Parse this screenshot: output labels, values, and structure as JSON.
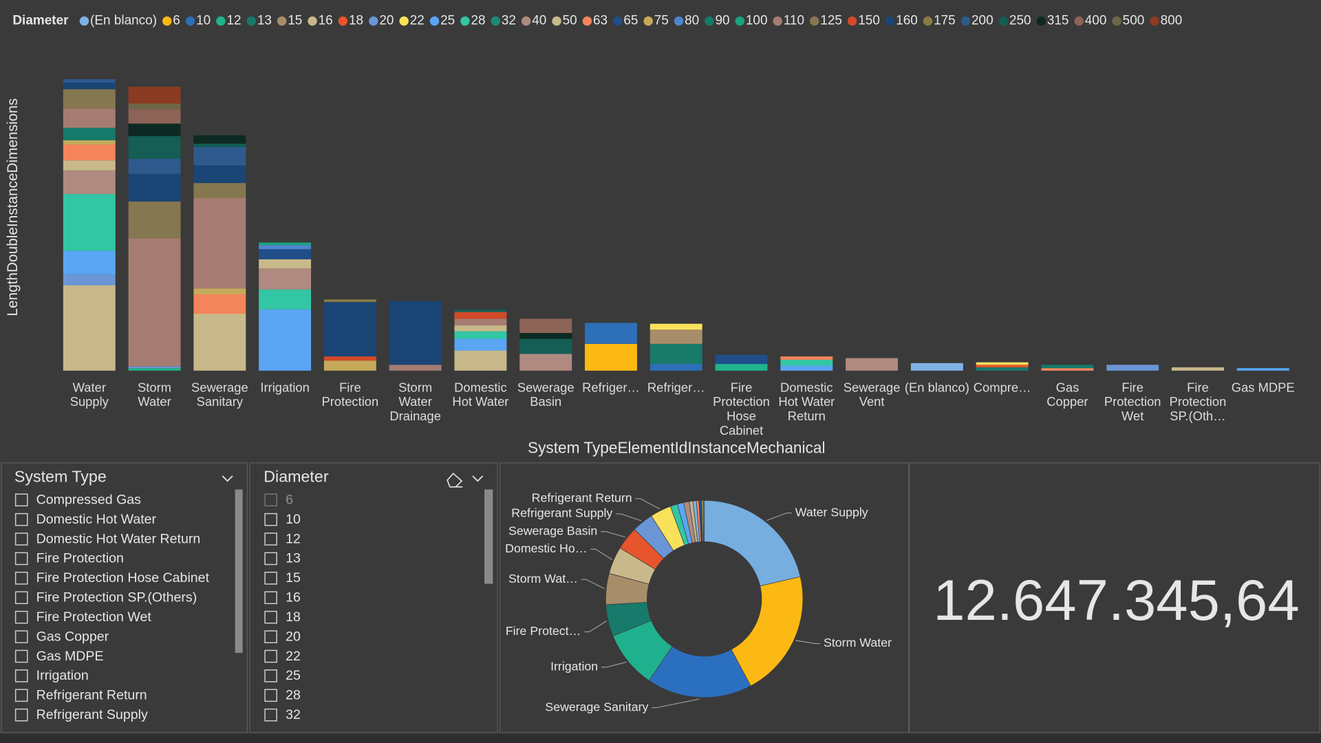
{
  "chart_data": [
    {
      "type": "stacked_bar",
      "legend_title": "Diameter",
      "y_label": "LengthDoubleInstanceDimensions",
      "x_label": "System TypeElementIdInstanceMechanical",
      "ylim": [
        0,
        350
      ],
      "grid": false,
      "legend_position": "top",
      "categories": [
        "Water Supply",
        "Storm Water",
        "Sewerage Sanitary",
        "Irrigation",
        "Fire Protection",
        "Storm Water Drainage",
        "Domestic Hot Water",
        "Sewerage Basin",
        "Refriger…",
        "Refriger…",
        "Fire Protection Hose Cabinet",
        "Domestic Hot Water Return",
        "Sewerage Vent",
        "(En blanco)",
        "Compre…",
        "Gas Copper",
        "Fire Protection Wet",
        "Fire Protection SP.(Oth…",
        "Gas MDPE"
      ],
      "series": [
        {
          "name": "(En blanco)",
          "color": "#7fb2e5",
          "values": [
            null,
            null,
            null,
            null,
            null,
            null,
            null,
            null,
            null,
            null,
            null,
            null,
            null,
            9,
            null,
            null,
            null,
            null,
            null
          ]
        },
        {
          "name": "6",
          "color": "#fdb913",
          "values": [
            null,
            null,
            null,
            null,
            null,
            null,
            null,
            null,
            32,
            null,
            null,
            null,
            null,
            null,
            null,
            null,
            null,
            null,
            null
          ]
        },
        {
          "name": "10",
          "color": "#2d6fb8",
          "values": [
            null,
            null,
            null,
            null,
            null,
            null,
            null,
            null,
            25,
            8,
            null,
            null,
            null,
            null,
            null,
            null,
            null,
            null,
            null
          ]
        },
        {
          "name": "12",
          "color": "#21b38d",
          "values": [
            null,
            3,
            null,
            null,
            null,
            null,
            null,
            null,
            null,
            null,
            8,
            null,
            null,
            null,
            null,
            null,
            null,
            null,
            null
          ]
        },
        {
          "name": "13",
          "color": "#197a6a",
          "values": [
            null,
            null,
            null,
            null,
            null,
            null,
            null,
            null,
            null,
            24,
            null,
            null,
            null,
            null,
            4,
            null,
            null,
            null,
            null
          ]
        },
        {
          "name": "15",
          "color": "#a88d6a",
          "values": [
            null,
            null,
            null,
            null,
            null,
            null,
            null,
            null,
            null,
            17,
            null,
            null,
            null,
            null,
            null,
            null,
            null,
            null,
            null
          ]
        },
        {
          "name": "16",
          "color": "#c8b88a",
          "values": [
            102,
            null,
            null,
            null,
            null,
            null,
            24,
            null,
            null,
            null,
            null,
            null,
            null,
            null,
            null,
            null,
            null,
            null,
            null
          ]
        },
        {
          "name": "18",
          "color": "#e8542b",
          "values": [
            null,
            null,
            null,
            null,
            null,
            null,
            null,
            null,
            null,
            null,
            null,
            null,
            null,
            null,
            3,
            null,
            null,
            null,
            null
          ]
        },
        {
          "name": "20",
          "color": "#6a96d6",
          "values": [
            13,
            2,
            null,
            null,
            null,
            null,
            null,
            null,
            null,
            null,
            null,
            null,
            null,
            null,
            null,
            null,
            7,
            null,
            null
          ]
        },
        {
          "name": "22",
          "color": "#f9e15a",
          "values": [
            null,
            null,
            null,
            null,
            null,
            null,
            null,
            null,
            null,
            7,
            null,
            null,
            null,
            null,
            3,
            null,
            null,
            null,
            null
          ]
        },
        {
          "name": "25",
          "color": "#5aa6f5",
          "values": [
            28,
            null,
            null,
            73,
            null,
            null,
            14,
            null,
            null,
            null,
            null,
            6,
            null,
            null,
            null,
            null,
            null,
            null,
            3
          ]
        },
        {
          "name": "28",
          "color": "#33c6a4",
          "values": [
            68,
            null,
            null,
            24,
            null,
            null,
            9,
            null,
            null,
            null,
            null,
            7,
            null,
            null,
            null,
            null,
            null,
            null,
            null
          ]
        },
        {
          "name": "32",
          "color": "#1a8a7a",
          "values": [
            null,
            null,
            null,
            null,
            null,
            null,
            null,
            null,
            null,
            null,
            null,
            null,
            null,
            null,
            null,
            null,
            null,
            null,
            null
          ]
        },
        {
          "name": "40",
          "color": "#b08a80",
          "values": [
            28,
            null,
            null,
            25,
            null,
            null,
            null,
            20,
            null,
            null,
            null,
            null,
            15,
            null,
            null,
            null,
            null,
            null,
            null
          ]
        },
        {
          "name": "50",
          "color": "#c8b98a",
          "values": [
            12,
            null,
            68,
            11,
            null,
            null,
            7,
            null,
            null,
            null,
            null,
            null,
            null,
            null,
            null,
            null,
            null,
            4,
            null
          ]
        },
        {
          "name": "63",
          "color": "#f4845b",
          "values": [
            19,
            null,
            23,
            null,
            null,
            null,
            null,
            null,
            null,
            null,
            null,
            4,
            null,
            null,
            null,
            3,
            null,
            null,
            null
          ]
        },
        {
          "name": "65",
          "color": "#1f4e89",
          "values": [
            null,
            null,
            null,
            12,
            null,
            null,
            null,
            null,
            null,
            null,
            11,
            null,
            null,
            null,
            null,
            null,
            null,
            null,
            null
          ]
        },
        {
          "name": "75",
          "color": "#c5aa5a",
          "values": [
            5,
            null,
            7,
            null,
            12,
            null,
            null,
            null,
            null,
            null,
            null,
            null,
            null,
            null,
            null,
            null,
            null,
            null,
            null
          ]
        },
        {
          "name": "80",
          "color": "#4c86cc",
          "values": [
            null,
            null,
            null,
            5,
            null,
            null,
            null,
            null,
            null,
            null,
            null,
            null,
            null,
            null,
            null,
            null,
            null,
            null,
            null
          ]
        },
        {
          "name": "90",
          "color": "#167a6a",
          "values": [
            15,
            null,
            null,
            null,
            null,
            null,
            null,
            null,
            null,
            null,
            null,
            null,
            null,
            null,
            null,
            4,
            null,
            null,
            null
          ]
        },
        {
          "name": "100",
          "color": "#1ba27f",
          "values": [
            null,
            null,
            null,
            3,
            null,
            null,
            null,
            null,
            null,
            null,
            null,
            null,
            null,
            null,
            null,
            null,
            null,
            null,
            null
          ]
        },
        {
          "name": "110",
          "color": "#a67c72",
          "values": [
            23,
            153,
            108,
            null,
            null,
            7,
            8,
            null,
            null,
            null,
            null,
            null,
            null,
            null,
            null,
            null,
            null,
            null,
            null
          ]
        },
        {
          "name": "125",
          "color": "#85774f",
          "values": [
            23,
            44,
            18,
            null,
            null,
            null,
            null,
            null,
            null,
            null,
            null,
            null,
            null,
            null,
            null,
            null,
            null,
            null,
            null
          ]
        },
        {
          "name": "150",
          "color": "#d24a2a",
          "values": [
            null,
            null,
            null,
            null,
            5,
            null,
            8,
            null,
            null,
            null,
            null,
            null,
            null,
            null,
            null,
            null,
            null,
            null,
            null
          ]
        },
        {
          "name": "160",
          "color": "#1a4575",
          "values": [
            8,
            33,
            21,
            null,
            65,
            76,
            null,
            null,
            null,
            null,
            null,
            null,
            null,
            null,
            null,
            null,
            null,
            null,
            null
          ]
        },
        {
          "name": "175",
          "color": "#8a7b44",
          "values": [
            null,
            null,
            null,
            null,
            3,
            null,
            null,
            null,
            null,
            null,
            null,
            null,
            null,
            null,
            null,
            null,
            null,
            null,
            null
          ]
        },
        {
          "name": "200",
          "color": "#2e5a8e",
          "values": [
            4,
            18,
            22,
            null,
            null,
            null,
            null,
            null,
            null,
            null,
            null,
            null,
            null,
            null,
            null,
            null,
            null,
            null,
            null
          ]
        },
        {
          "name": "250",
          "color": "#145e55",
          "values": [
            null,
            27,
            4,
            null,
            null,
            null,
            3,
            18,
            null,
            null,
            null,
            null,
            null,
            null,
            null,
            null,
            null,
            null,
            null
          ]
        },
        {
          "name": "315",
          "color": "#0d2a22",
          "values": [
            null,
            15,
            10,
            null,
            null,
            null,
            null,
            7,
            null,
            null,
            null,
            null,
            null,
            null,
            null,
            null,
            null,
            null,
            null
          ]
        },
        {
          "name": "400",
          "color": "#8e6358",
          "values": [
            null,
            17,
            null,
            null,
            null,
            null,
            null,
            17,
            null,
            null,
            null,
            null,
            null,
            null,
            null,
            null,
            null,
            null,
            null
          ]
        },
        {
          "name": "500",
          "color": "#6f6648",
          "values": [
            null,
            7,
            null,
            null,
            null,
            null,
            null,
            null,
            null,
            null,
            null,
            null,
            null,
            null,
            null,
            null,
            null,
            null,
            null
          ]
        },
        {
          "name": "800",
          "color": "#8b3b22",
          "values": [
            null,
            20,
            null,
            null,
            null,
            null,
            null,
            null,
            null,
            null,
            null,
            null,
            null,
            null,
            null,
            null,
            null,
            null,
            null
          ]
        }
      ]
    },
    {
      "type": "donut",
      "labels": [
        "Water Supply",
        "Storm Water",
        "Sewerage Sanitary",
        "Irrigation",
        "Fire Protect…",
        "Storm Wat…",
        "Domestic Ho…",
        "Sewerage Basin",
        "Refrigerant Supply",
        "Refrigerant Return",
        null,
        null,
        null,
        null,
        null,
        null,
        null,
        null,
        null
      ],
      "values": [
        348,
        339,
        281,
        153,
        85,
        83,
        73,
        62,
        57,
        56,
        19,
        17,
        15,
        10,
        9,
        7,
        7,
        4,
        3
      ],
      "colors": [
        "#76aee0",
        "#fdb913",
        "#2b6fc0",
        "#1fb18e",
        "#177a6a",
        "#a88d6a",
        "#c9b98a",
        "#e8542b",
        "#6a96d6",
        "#f9e15a",
        "#33c6a4",
        "#5aa6f5",
        "#b08a80",
        "#c2b48a",
        "#7fb2e5",
        "#f4845b",
        "#1f4e89",
        "#c5aa5a",
        "#4c86cc"
      ]
    }
  ],
  "slicers": [
    {
      "title": "System Type",
      "items": [
        "Compressed Gas",
        "Domestic Hot Water",
        "Domestic Hot Water Return",
        "Fire Protection",
        "Fire Protection Hose Cabinet",
        "Fire Protection SP.(Others)",
        "Fire Protection Wet",
        "Gas Copper",
        "Gas MDPE",
        "Irrigation",
        "Refrigerant Return",
        "Refrigerant Supply"
      ]
    },
    {
      "title": "Diameter",
      "items": [
        "6",
        "10",
        "12",
        "13",
        "15",
        "16",
        "18",
        "20",
        "22",
        "25",
        "28",
        "32"
      ]
    }
  ],
  "card": {
    "value": "12.647.345,64"
  }
}
